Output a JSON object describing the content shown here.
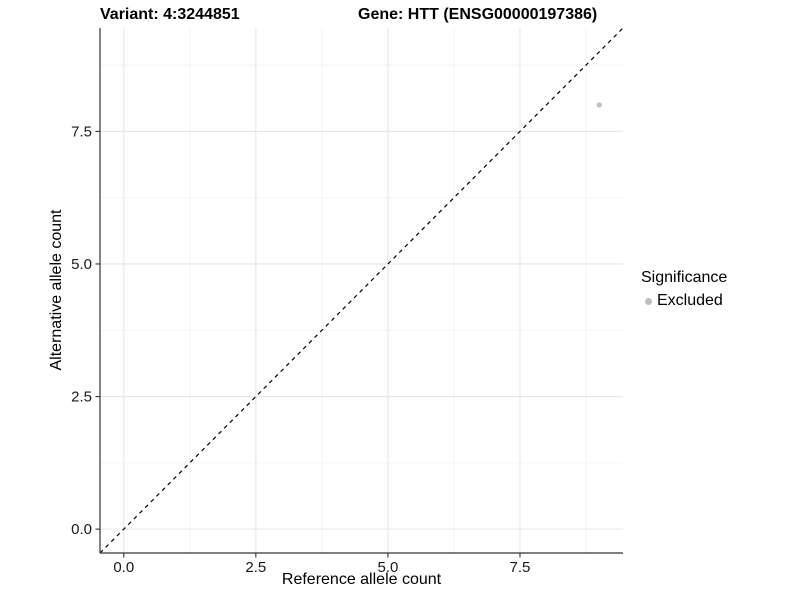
{
  "chart_data": {
    "type": "scatter",
    "title_left": "Variant: 4:3244851",
    "title_right": "Gene: HTT (ENSG00000197386)",
    "xlabel": "Reference allele count",
    "ylabel": "Alternative allele count",
    "xlim": [
      -0.45,
      9.45
    ],
    "ylim": [
      -0.45,
      9.45
    ],
    "x_ticks": {
      "values": [
        0,
        2.5,
        5,
        7.5
      ],
      "labels": [
        "0.0",
        "2.5",
        "5.0",
        "7.5"
      ]
    },
    "y_ticks": {
      "values": [
        0,
        2.5,
        5,
        7.5
      ],
      "labels": [
        "0.0",
        "2.5",
        "5.0",
        "7.5"
      ]
    },
    "x_minor": [
      1.25,
      3.75,
      6.25,
      8.75
    ],
    "y_minor": [
      1.25,
      3.75,
      6.25,
      8.75
    ],
    "grid": true,
    "points": [
      {
        "x": 9,
        "y": 8,
        "series": "Excluded"
      }
    ],
    "reference_line": {
      "kind": "identity",
      "slope": 1,
      "intercept": 0,
      "style": "dashed"
    },
    "legend": {
      "title": "Significance",
      "position": "right",
      "items": [
        {
          "label": "Excluded",
          "color": "#bdbdbd",
          "marker": "circle"
        }
      ]
    },
    "colors": {
      "point": "#bfbfbf",
      "grid_major": "#e6e6e6",
      "grid_minor": "#f2f2f2",
      "axis": "#333333",
      "text": "#1a1a1a",
      "reference_line": "#000000",
      "background": "#ffffff"
    }
  }
}
